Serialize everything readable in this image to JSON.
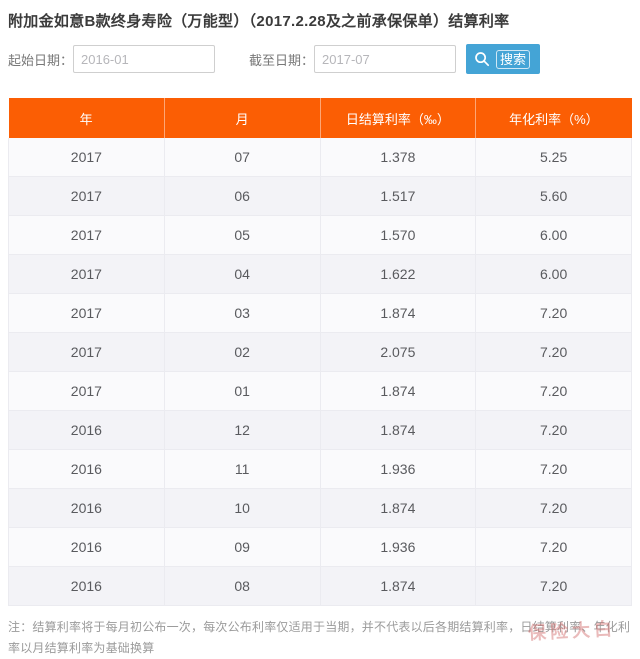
{
  "page": {
    "title": "附加金如意B款终身寿险（万能型）（2017.2.28及之前承保保单）结算利率"
  },
  "filters": {
    "start_label": "起始日期：",
    "start_value": "2016-01",
    "end_label": "截至日期：",
    "end_value": "2017-07",
    "search_label": "搜索",
    "search_icon": "magnifier-icon"
  },
  "table": {
    "headers": [
      "年",
      "月",
      "日结算利率（‰）",
      "年化利率（%）"
    ],
    "rows": [
      [
        "2017",
        "07",
        "1.378",
        "5.25"
      ],
      [
        "2017",
        "06",
        "1.517",
        "5.60"
      ],
      [
        "2017",
        "05",
        "1.570",
        "6.00"
      ],
      [
        "2017",
        "04",
        "1.622",
        "6.00"
      ],
      [
        "2017",
        "03",
        "1.874",
        "7.20"
      ],
      [
        "2017",
        "02",
        "2.075",
        "7.20"
      ],
      [
        "2017",
        "01",
        "1.874",
        "7.20"
      ],
      [
        "2016",
        "12",
        "1.874",
        "7.20"
      ],
      [
        "2016",
        "11",
        "1.936",
        "7.20"
      ],
      [
        "2016",
        "10",
        "1.874",
        "7.20"
      ],
      [
        "2016",
        "09",
        "1.936",
        "7.20"
      ],
      [
        "2016",
        "08",
        "1.874",
        "7.20"
      ]
    ]
  },
  "note": "注：结算利率将于每月初公布一次，每次公布利率仅适用于当期，并不代表以后各期结算利率，日结算利率、年化利率以月结算利率为基础换算",
  "watermark": "保险大白",
  "colors": {
    "table_header_bg": "#fb5e04",
    "search_button_bg": "#44a4d6",
    "row_bg": "#f7f7fa",
    "note_text": "#9b9b9b",
    "title_text": "#3b3b3b"
  }
}
